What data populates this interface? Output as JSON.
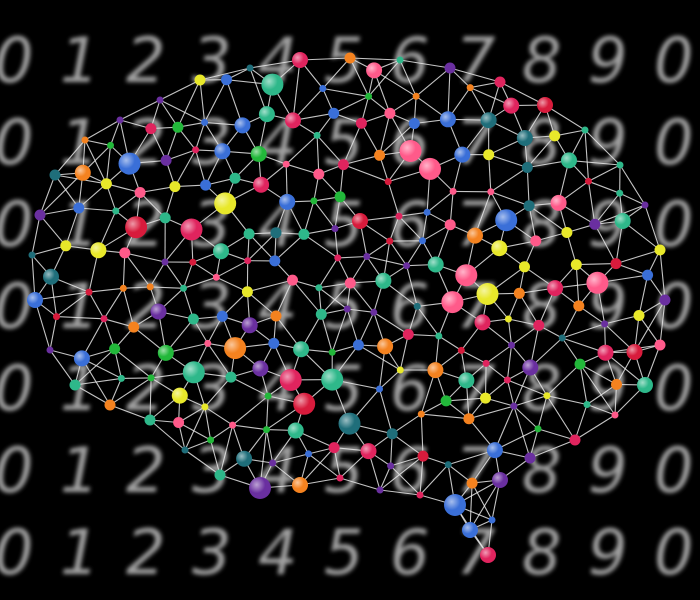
{
  "background": {
    "color": "#000000",
    "digit_color": "#d8d8d8",
    "digits": [
      "0",
      "1",
      "2",
      "3",
      "4",
      "5",
      "6",
      "7",
      "8",
      "9"
    ],
    "rows": 7,
    "style": "handwritten-blurred"
  },
  "network": {
    "edge_color": "#e6e6e6",
    "node_palette": [
      "#e0245e",
      "#f4821f",
      "#2eb88a",
      "#3a6fd8",
      "#6a2fa0",
      "#1f6e7a",
      "#22b83a",
      "#e8e82a",
      "#d81b3c",
      "#ff5a8a"
    ],
    "shape": "brain"
  }
}
